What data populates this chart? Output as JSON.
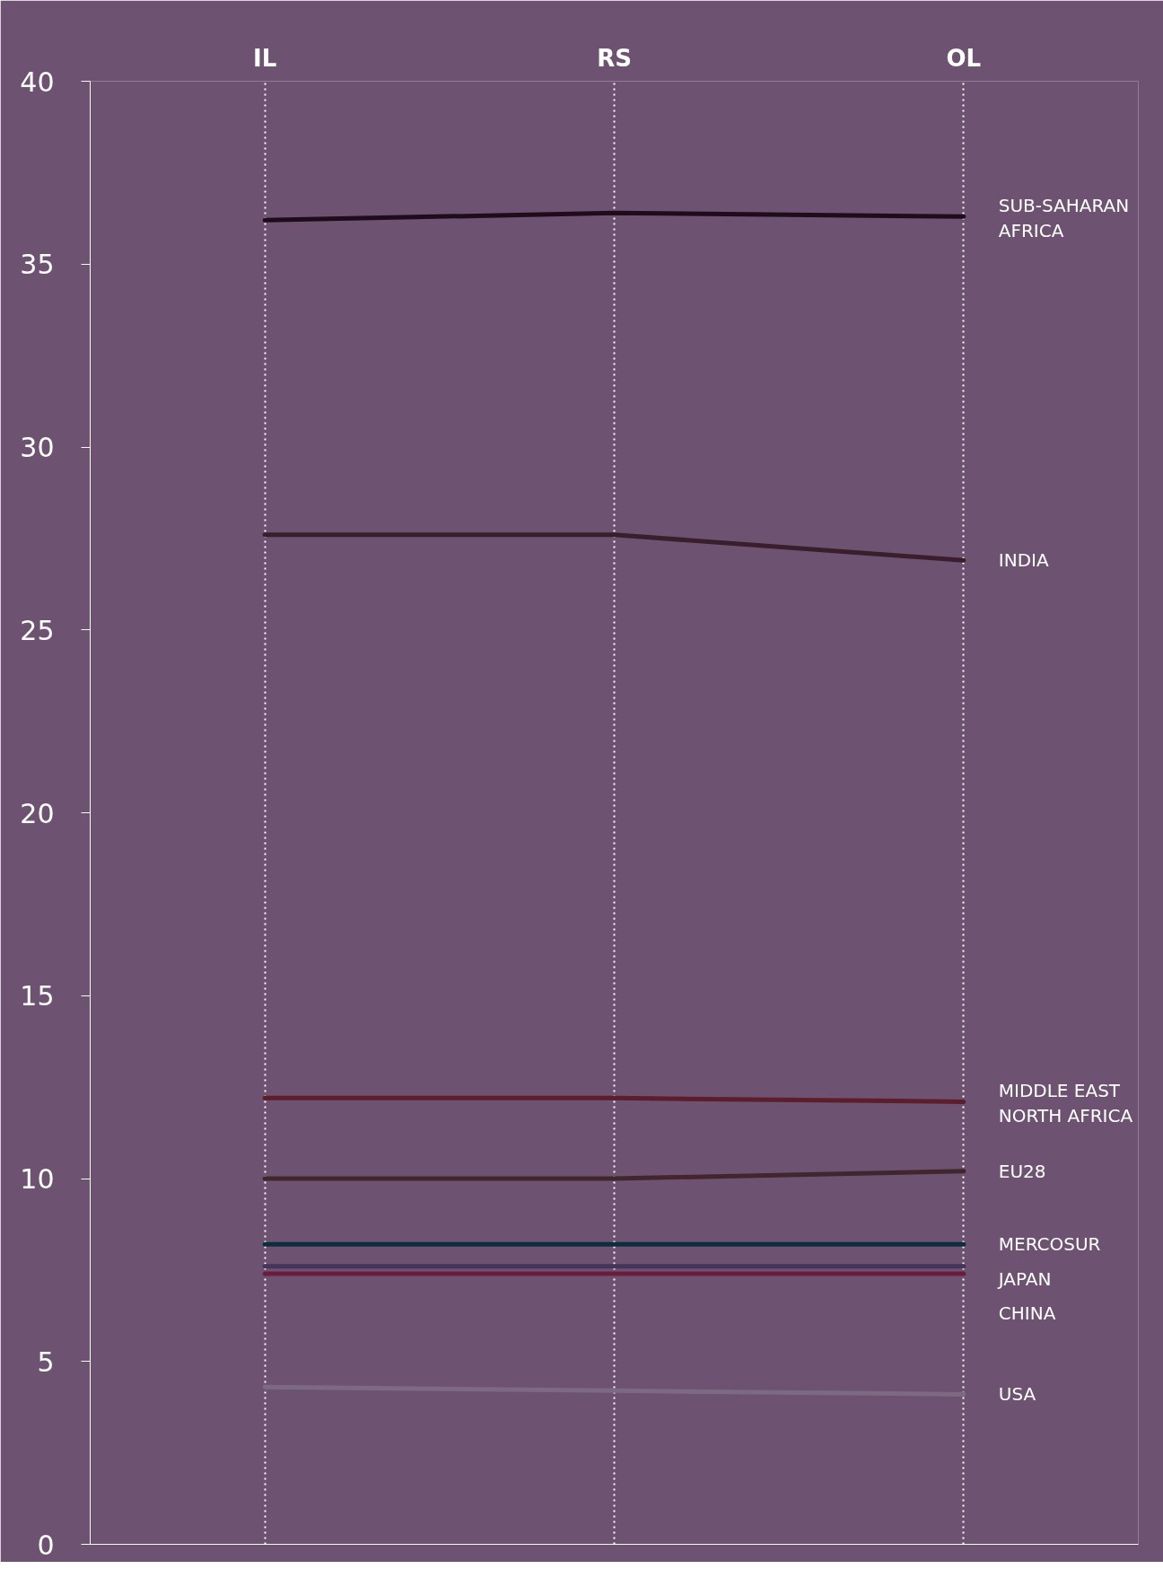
{
  "chart_data": {
    "type": "line",
    "categories": [
      "IL",
      "RS",
      "OL"
    ],
    "ylim": [
      0,
      40
    ],
    "yticks": [
      0,
      5,
      10,
      15,
      20,
      25,
      30,
      35,
      40
    ],
    "grid": "x",
    "marker": "none",
    "line_style": "solid",
    "series": [
      {
        "name": "SUB-SAHARAN AFRICA",
        "color": "#1e0c1c",
        "values": [
          36.2,
          36.4,
          36.3
        ]
      },
      {
        "name": "INDIA",
        "color": "#3a1e2c",
        "values": [
          27.6,
          27.6,
          26.9
        ]
      },
      {
        "name": "MIDDLE EAST NORTH AFRICA",
        "color": "#5c1e2a",
        "values": [
          12.2,
          12.2,
          12.1
        ]
      },
      {
        "name": "EU28",
        "color": "#42262e",
        "values": [
          10.0,
          10.0,
          10.2
        ]
      },
      {
        "name": "MERCOSUR",
        "color": "#0c2e3e",
        "values": [
          8.2,
          8.2,
          8.2
        ]
      },
      {
        "name": "JAPAN",
        "color": "#44365a",
        "values": [
          7.6,
          7.6,
          7.6
        ]
      },
      {
        "name": "CHINA",
        "color": "#6c1c3c",
        "values": [
          7.4,
          7.4,
          7.4
        ]
      },
      {
        "name": "USA",
        "color": "#7c6a84",
        "values": [
          4.3,
          4.2,
          4.1
        ]
      }
    ]
  }
}
